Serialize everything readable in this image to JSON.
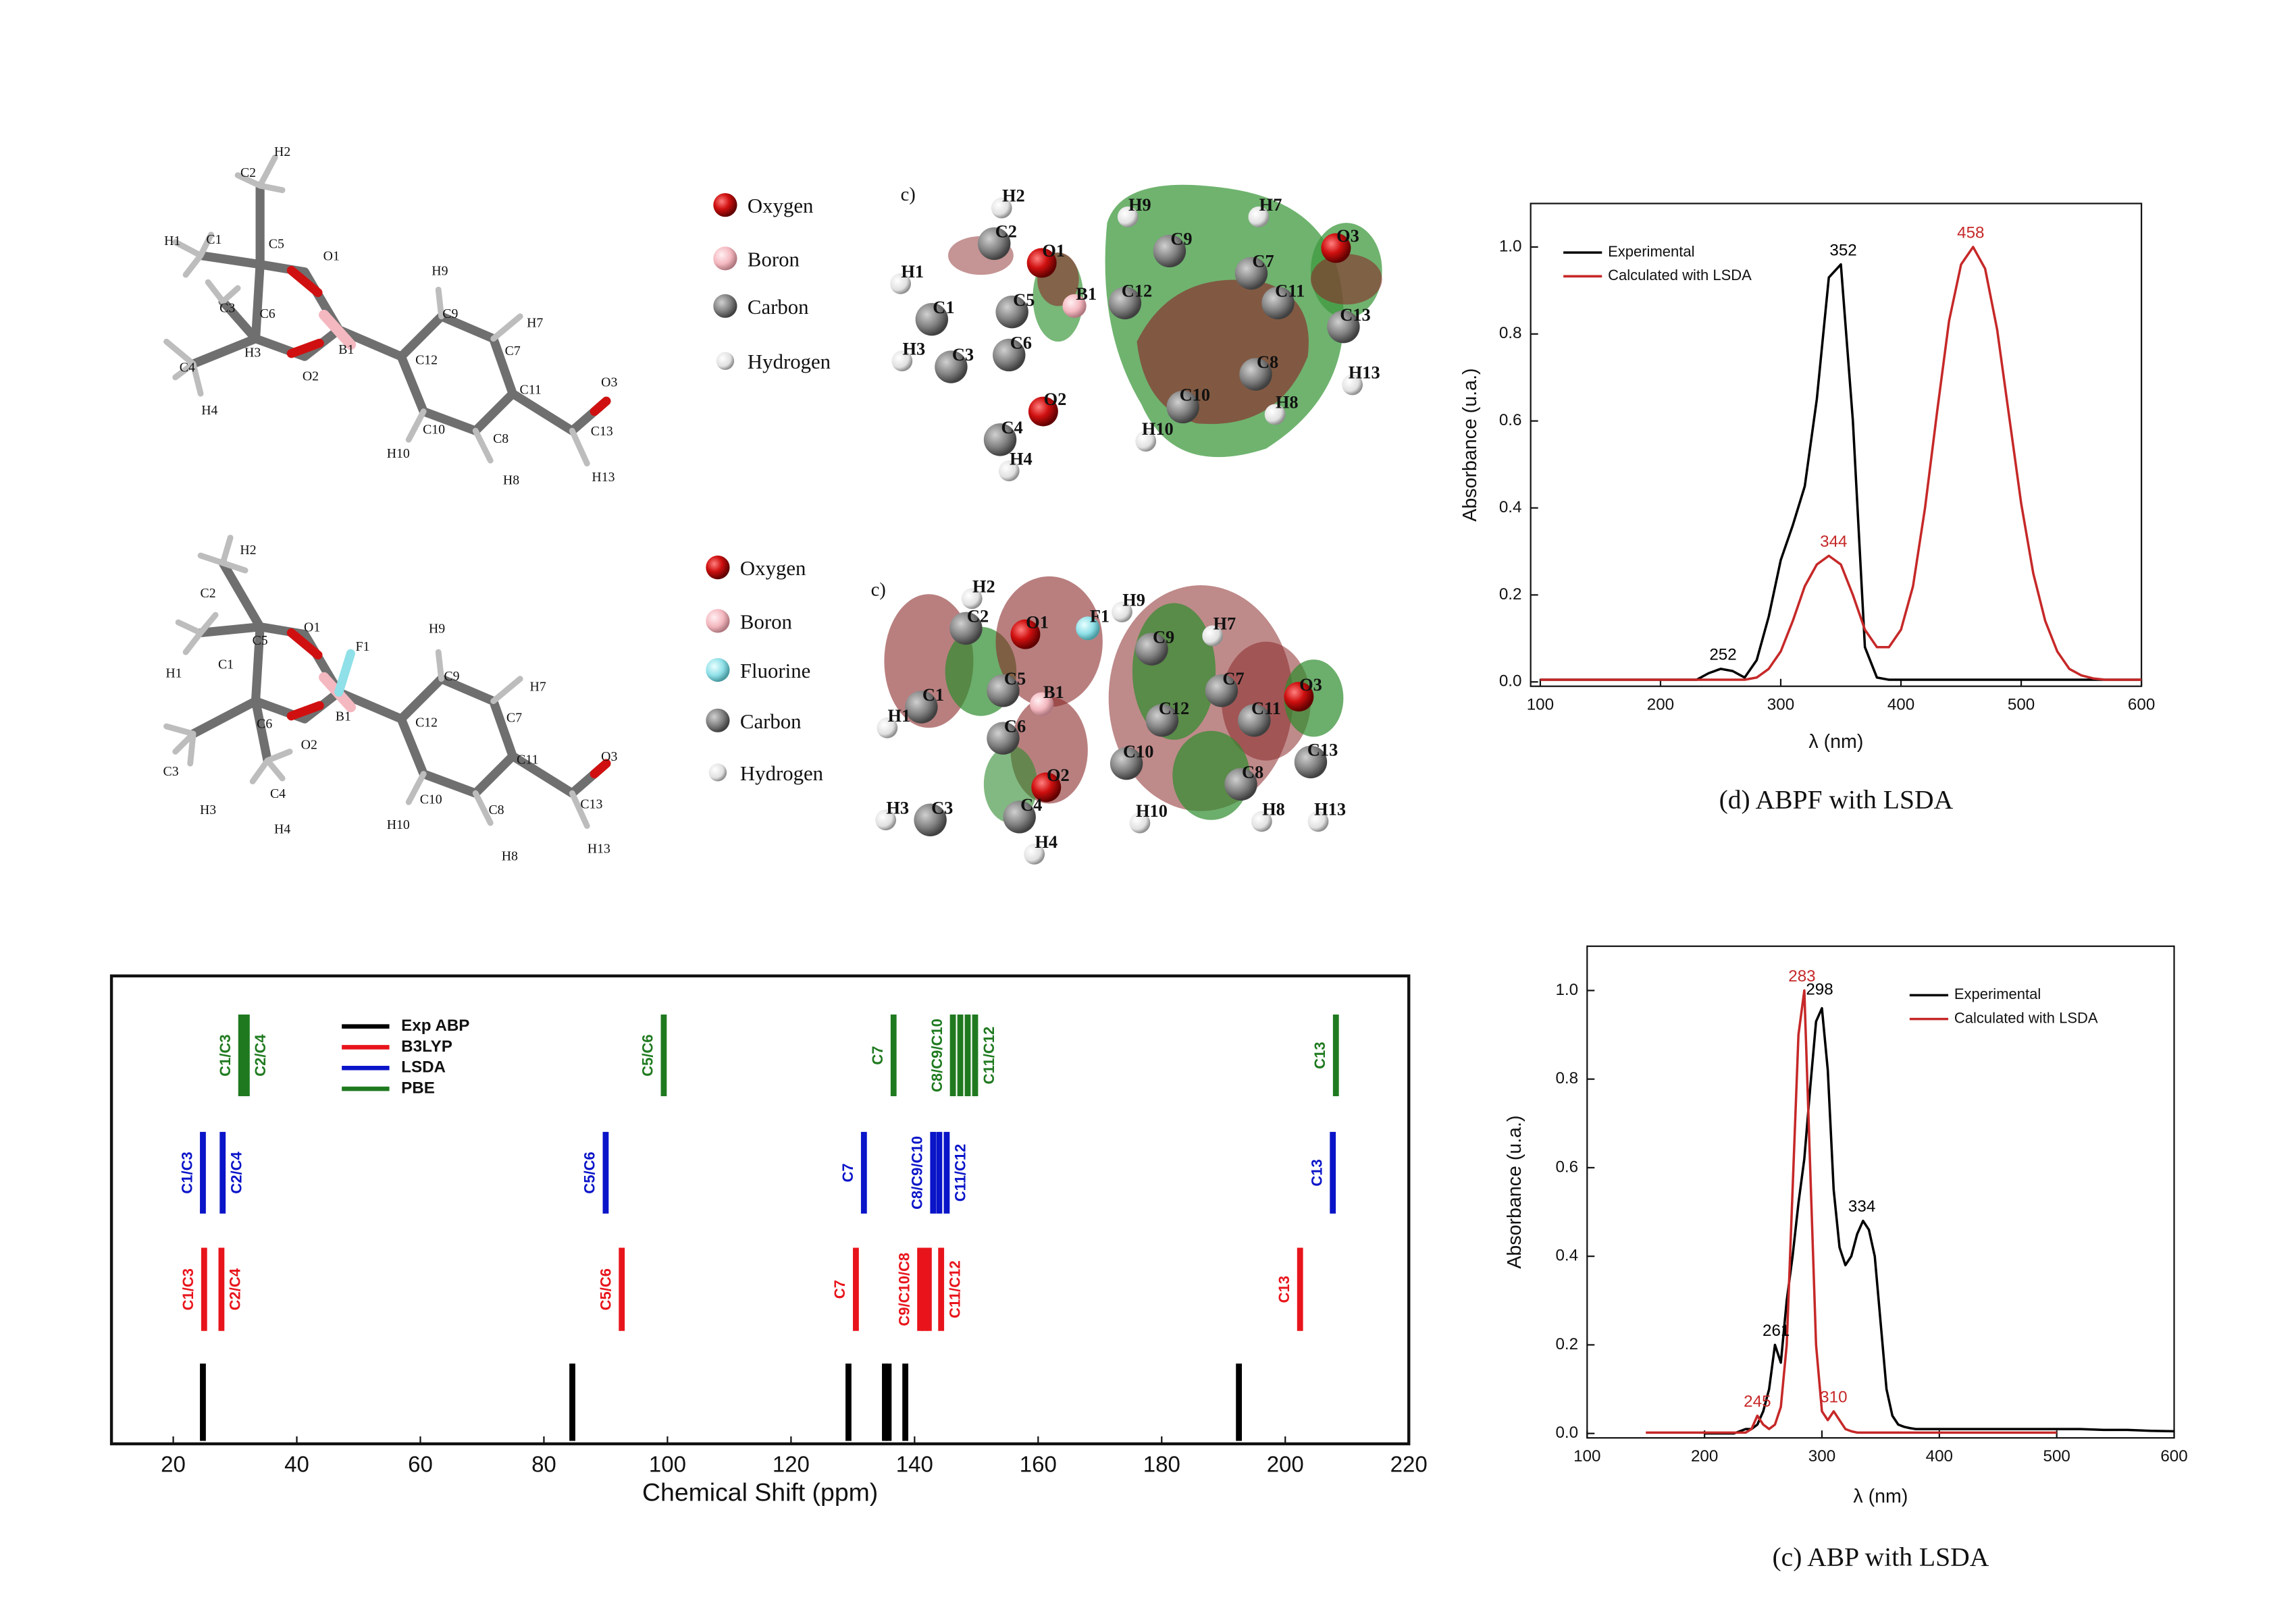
{
  "molecules": [
    {
      "atoms": [
        "H2",
        "C2",
        "H1",
        "C1",
        "C5",
        "O1",
        "H9",
        "C9",
        "H7",
        "C7",
        "C3",
        "C6",
        "H3",
        "B1",
        "C12",
        "O2",
        "C11",
        "O3",
        "C4",
        "H4",
        "C10",
        "C8",
        "C13",
        "H10",
        "H8",
        "H13"
      ]
    },
    {
      "tag": "c)",
      "atoms": [
        "H2",
        "C2",
        "O1",
        "H9",
        "H7",
        "C9",
        "H1",
        "C7",
        "O3",
        "C1",
        "C5",
        "B1",
        "C12",
        "C11",
        "C13",
        "H3",
        "C3",
        "C6",
        "C8",
        "H13",
        "O2",
        "C10",
        "H8",
        "C4",
        "H10",
        "H4"
      ]
    },
    {
      "atoms": [
        "H2",
        "C2",
        "O1",
        "F1",
        "H9",
        "C5",
        "H1",
        "C1",
        "C9",
        "H7",
        "B1",
        "C12",
        "C7",
        "C6",
        "O2",
        "C11",
        "O3",
        "C3",
        "C4",
        "C10",
        "C13",
        "H3",
        "H4",
        "H10",
        "C8",
        "H8",
        "H13"
      ]
    },
    {
      "tag": "c)",
      "atoms": [
        "H2",
        "O1",
        "F1",
        "H9",
        "H7",
        "C2",
        "C9",
        "C7",
        "O3",
        "C1",
        "C5",
        "B1",
        "C12",
        "C11",
        "H1",
        "C6",
        "C10",
        "C13",
        "O2",
        "C8",
        "H3",
        "C3",
        "C4",
        "H10",
        "H8",
        "H13",
        "H4"
      ]
    }
  ],
  "legends": [
    [
      "Oxygen",
      "Boron",
      "Carbon",
      "Hydrogen"
    ],
    [
      "Oxygen",
      "Boron",
      "Fluorine",
      "Carbon",
      "Hydrogen"
    ]
  ],
  "chart_data": [
    {
      "type": "line",
      "caption": "(d) ABPF with LSDA",
      "xlabel": "λ (nm)",
      "ylabel": "Absorbance (u.a.)",
      "xlim": [
        92,
        600
      ],
      "ylim": [
        -0.01,
        1.1
      ],
      "xticks": [
        100,
        200,
        300,
        400,
        500,
        600
      ],
      "yticks": [
        {
          "value": 0,
          "label": "0.0"
        },
        0.2,
        0.4,
        0.6,
        0.8,
        {
          "value": 1,
          "label": "1.0"
        }
      ],
      "legend": "upper left",
      "x": [
        100,
        110,
        120,
        130,
        140,
        150,
        160,
        170,
        180,
        190,
        200,
        210,
        220,
        230,
        240,
        250,
        260,
        270,
        280,
        290,
        300,
        310,
        320,
        330,
        340,
        350,
        360,
        370,
        380,
        390,
        400,
        410,
        420,
        430,
        440,
        450,
        460,
        470,
        480,
        490,
        500,
        510,
        520,
        530,
        540,
        550,
        560,
        570,
        580,
        590,
        600
      ],
      "series": [
        {
          "name": "Experimental",
          "color": "#000000",
          "values": [
            0.005,
            0.005,
            0.005,
            0.005,
            0.005,
            0.005,
            0.005,
            0.005,
            0.005,
            0.005,
            0.005,
            0.005,
            0.005,
            0.005,
            0.02,
            0.03,
            0.025,
            0.01,
            0.05,
            0.15,
            0.28,
            0.36,
            0.45,
            0.65,
            0.93,
            0.96,
            0.6,
            0.08,
            0.01,
            0.005,
            0.005,
            0.005,
            0.005,
            0.005,
            0.005,
            0.005,
            0.005,
            0.005,
            0.005,
            0.005,
            0.005,
            0.005,
            0.005,
            0.005,
            0.005,
            0.005,
            0.005,
            0.005,
            0.005,
            0.005,
            0.005
          ]
        },
        {
          "name": "Calculated with LSDA",
          "color": "#c62828",
          "values": [
            0.005,
            0.005,
            0.005,
            0.005,
            0.005,
            0.005,
            0.005,
            0.005,
            0.005,
            0.005,
            0.005,
            0.005,
            0.005,
            0.005,
            0.005,
            0.005,
            0.005,
            0.005,
            0.01,
            0.03,
            0.07,
            0.14,
            0.22,
            0.27,
            0.29,
            0.27,
            0.2,
            0.12,
            0.08,
            0.08,
            0.12,
            0.22,
            0.4,
            0.62,
            0.83,
            0.96,
            1.0,
            0.95,
            0.81,
            0.61,
            0.41,
            0.25,
            0.14,
            0.07,
            0.03,
            0.015,
            0.008,
            0.005,
            0.005,
            0.005,
            0.005
          ]
        }
      ],
      "annotations": [
        {
          "text": "252",
          "x": 252,
          "y": 0.03,
          "color": "#000000"
        },
        {
          "text": "352",
          "x": 352,
          "y": 0.96,
          "color": "#000000"
        },
        {
          "text": "344",
          "x": 344,
          "y": 0.29,
          "color": "#c62828"
        },
        {
          "text": "458",
          "x": 458,
          "y": 1.0,
          "color": "#c62828"
        }
      ]
    },
    {
      "type": "line",
      "caption": "(c) ABP with LSDA",
      "xlabel": "λ (nm)",
      "ylabel": "Absorbance (u.a.)",
      "xlim": [
        100,
        600
      ],
      "ylim": [
        -0.01,
        1.1
      ],
      "xticks": [
        100,
        200,
        300,
        400,
        500,
        600
      ],
      "yticks": [
        {
          "value": 0,
          "label": "0.0"
        },
        0.2,
        0.4,
        0.6,
        0.8,
        {
          "value": 1,
          "label": "1.0"
        }
      ],
      "legend": "upper right",
      "x": [
        150,
        155,
        160,
        165,
        170,
        175,
        180,
        185,
        190,
        195,
        200,
        205,
        210,
        215,
        220,
        225,
        230,
        235,
        240,
        245,
        250,
        255,
        260,
        265,
        270,
        275,
        280,
        285,
        290,
        295,
        300,
        305,
        310,
        315,
        320,
        325,
        330,
        335,
        340,
        345,
        350,
        355,
        360,
        365,
        370,
        375,
        380,
        385,
        390,
        395,
        400,
        420,
        440,
        460,
        480,
        500,
        520,
        540,
        560,
        580,
        600
      ],
      "series": [
        {
          "name": "Experimental",
          "color": "#000000",
          "values": [
            null,
            null,
            null,
            null,
            null,
            null,
            null,
            null,
            null,
            null,
            0,
            0,
            0,
            0,
            0,
            0,
            0.005,
            0.01,
            0.01,
            0.02,
            0.05,
            0.1,
            0.2,
            0.16,
            0.3,
            0.4,
            0.52,
            0.62,
            0.78,
            0.93,
            0.96,
            0.82,
            0.55,
            0.42,
            0.38,
            0.4,
            0.45,
            0.48,
            0.46,
            0.4,
            0.25,
            0.1,
            0.04,
            0.02,
            0.015,
            0.012,
            0.01,
            0.01,
            0.01,
            0.01,
            0.01,
            0.01,
            0.01,
            0.01,
            0.01,
            0.01,
            0.01,
            0.008,
            0.008,
            0.006,
            0.005
          ]
        },
        {
          "name": "Calculated with LSDA",
          "color": "#c62828",
          "values": [
            0.002,
            0.002,
            0.002,
            0.002,
            0.002,
            0.002,
            0.002,
            0.002,
            0.002,
            0.002,
            0.002,
            0.002,
            0.002,
            0.002,
            0.002,
            0.002,
            0.002,
            0.002,
            0.01,
            0.04,
            0.02,
            0.01,
            0.02,
            0.06,
            0.2,
            0.55,
            0.9,
            1.0,
            0.6,
            0.2,
            0.05,
            0.03,
            0.05,
            0.03,
            0.01,
            0.005,
            0.002,
            0.002,
            0.002,
            0.002,
            0.002,
            0.002,
            0.002,
            0.002,
            0.002,
            0.002,
            0.002,
            0.002,
            0.002,
            0.002,
            0.002,
            0.002,
            0.002,
            0.002,
            0.002,
            0.002,
            null,
            null,
            null,
            null,
            null
          ]
        }
      ],
      "annotations": [
        {
          "text": "283",
          "x": 283,
          "y": 1.0,
          "color": "#c62828"
        },
        {
          "text": "298",
          "x": 298,
          "y": 0.97,
          "color": "#000000"
        },
        {
          "text": "334",
          "x": 334,
          "y": 0.48,
          "color": "#000000"
        },
        {
          "text": "261",
          "x": 261,
          "y": 0.2,
          "color": "#000000"
        },
        {
          "text": "245",
          "x": 245,
          "y": 0.04,
          "color": "#c62828"
        },
        {
          "text": "310",
          "x": 310,
          "y": 0.05,
          "color": "#c62828"
        }
      ]
    },
    {
      "type": "stick",
      "xlabel": "Chemical Shift (ppm)",
      "xlim": [
        10,
        220
      ],
      "xticks": [
        20,
        40,
        60,
        80,
        100,
        120,
        140,
        160,
        180,
        200,
        220
      ],
      "legend": "upper left",
      "series": [
        {
          "name": "Exp ABP",
          "color": "#000000",
          "values": [
            24.8,
            84.6,
            129.3,
            135.2,
            135.8,
            138.5,
            192.5
          ]
        },
        {
          "name": "B3LYP",
          "color": "#e8141b",
          "values": [
            25.0,
            27.8,
            92.6,
            130.5,
            140.9,
            141.6,
            142.3,
            144.3,
            202.4
          ],
          "labels": [
            "C1/C3",
            "C2/C4",
            "C5/C6",
            "C7",
            "C9/C10/C8",
            null,
            null,
            "C11/C12",
            "C13"
          ]
        },
        {
          "name": "LSDA",
          "color": "#0a14c8",
          "values": [
            24.8,
            28.0,
            90.0,
            131.8,
            143.0,
            144.0,
            145.2,
            207.7
          ],
          "labels": [
            "C1/C3",
            "C2/C4",
            "C5/C6",
            "C7",
            "C8/C9/C10",
            null,
            "C11/C12",
            "C13"
          ]
        },
        {
          "name": "PBE",
          "color": "#1f7a1f",
          "values": [
            31.0,
            31.9,
            99.4,
            136.6,
            146.2,
            147.4,
            148.6,
            149.8,
            208.2
          ],
          "labels": [
            "C1/C3",
            "C2/C4",
            "C5/C6",
            "C7",
            "C8/C9/C10",
            null,
            null,
            "C11/C12",
            "C13"
          ]
        }
      ]
    }
  ]
}
